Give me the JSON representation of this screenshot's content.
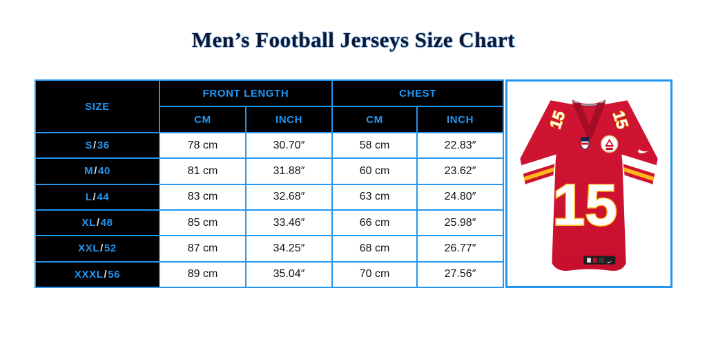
{
  "title": "Men’s Football Jerseys Size Chart",
  "colors": {
    "accent_blue": "#2196F3",
    "header_background": "#000000",
    "jersey_red": "#C8102E",
    "jersey_gold": "#FFB81C"
  },
  "table": {
    "size_header": "SIZE",
    "group_headers": [
      "FRONT LENGTH",
      "CHEST"
    ],
    "sub_headers": [
      "CM",
      "INCH",
      "CM",
      "INCH"
    ],
    "rows": [
      {
        "size": "S/36",
        "front_cm": "78 cm",
        "front_inch": "30.70″",
        "chest_cm": "58 cm",
        "chest_inch": "22.83″"
      },
      {
        "size": "M/40",
        "front_cm": "81 cm",
        "front_inch": "31.88″",
        "chest_cm": "60 cm",
        "chest_inch": "23.62″"
      },
      {
        "size": "L/44",
        "front_cm": "83 cm",
        "front_inch": "32.68″",
        "chest_cm": "63 cm",
        "chest_inch": "24.80″"
      },
      {
        "size": "XL/48",
        "front_cm": "85 cm",
        "front_inch": "33.46″",
        "chest_cm": "66 cm",
        "chest_inch": "25.98″"
      },
      {
        "size": "XXL/52",
        "front_cm": "87 cm",
        "front_inch": "34.25″",
        "chest_cm": "68 cm",
        "chest_inch": "26.77″"
      },
      {
        "size": "XXXL/56",
        "front_cm": "89 cm",
        "front_inch": "35.04″",
        "chest_cm": "70 cm",
        "chest_inch": "27.56″"
      }
    ]
  },
  "jersey": {
    "number": "15"
  },
  "chart_data": {
    "type": "table",
    "title": "Men’s Football Jerseys Size Chart",
    "columns": [
      "SIZE",
      "FRONT LENGTH CM",
      "FRONT LENGTH INCH",
      "CHEST CM",
      "CHEST INCH"
    ],
    "rows": [
      [
        "S/36",
        "78 cm",
        "30.70″",
        "58 cm",
        "22.83″"
      ],
      [
        "M/40",
        "81 cm",
        "31.88″",
        "60 cm",
        "23.62″"
      ],
      [
        "L/44",
        "83 cm",
        "32.68″",
        "63 cm",
        "24.80″"
      ],
      [
        "XL/48",
        "85 cm",
        "33.46″",
        "66 cm",
        "25.98″"
      ],
      [
        "XXL/52",
        "87 cm",
        "34.25″",
        "68 cm",
        "26.77″"
      ],
      [
        "XXXL/56",
        "89 cm",
        "35.04″",
        "70 cm",
        "27.56″"
      ]
    ],
    "front_length_cm": [
      78,
      81,
      83,
      85,
      87,
      89
    ],
    "front_length_inch": [
      30.7,
      31.88,
      32.68,
      33.46,
      34.25,
      35.04
    ],
    "chest_cm": [
      58,
      60,
      63,
      66,
      68,
      70
    ],
    "chest_inch": [
      22.83,
      23.62,
      24.8,
      25.98,
      26.77,
      27.56
    ]
  }
}
